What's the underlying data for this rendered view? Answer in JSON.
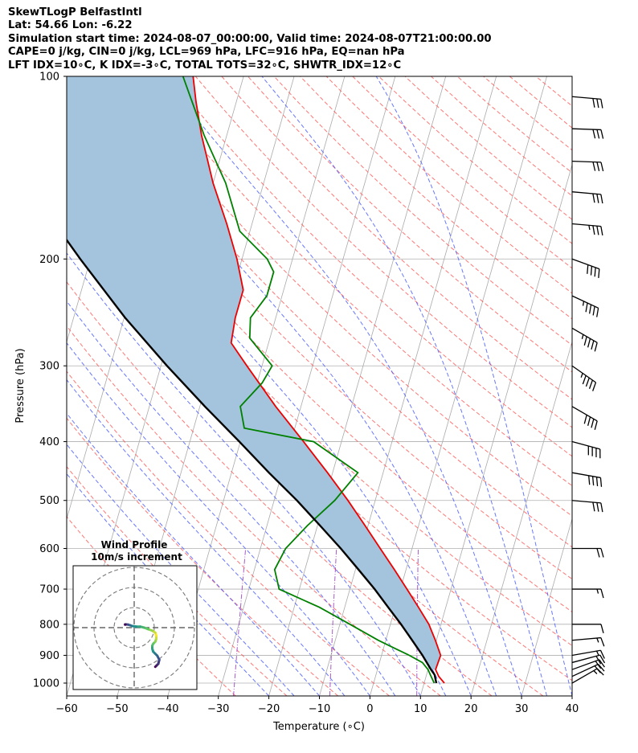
{
  "header": {
    "line1": "SkewTLogP BelfastIntl",
    "line2": "Lat: 54.66   Lon: -6.22",
    "line3": "Simulation start time: 2024-08-07_00:00:00, Valid time: 2024-08-07T21:00:00.00",
    "line4": "CAPE=0 j/kg, CIN=0 j/kg, LCL=969 hPa, LFC=916 hPa, EQ=nan hPa",
    "line5": "LFT IDX=10∘C, K IDX=-3∘C, TOTAL TOTS=32∘C, SHWTR_IDX=12∘C"
  },
  "chart_data": {
    "type": "line",
    "subtype": "skewt-logp",
    "xlabel": "Temperature (∘C)",
    "ylabel": "Pressure (hPa)",
    "xlim": [
      -60,
      40
    ],
    "ylim": [
      1050,
      100
    ],
    "y_scale": "log",
    "skew": 35,
    "x_ticks": [
      -60,
      -50,
      -40,
      -30,
      -20,
      -10,
      0,
      10,
      20,
      30,
      40
    ],
    "x_tick_labels": [
      "−60",
      "−50",
      "−40",
      "−30",
      "−20",
      "−10",
      "0",
      "10",
      "20",
      "30",
      "40"
    ],
    "y_ticks": [
      1000,
      900,
      800,
      700,
      600,
      500,
      400,
      300,
      200,
      100
    ],
    "y_tick_labels": [
      "1000",
      "900",
      "800",
      "700",
      "600",
      "500",
      "400",
      "300",
      "200",
      "100"
    ],
    "grid": true,
    "colors": {
      "temperature": "#ee0000",
      "dewpoint": "#008000",
      "parcel": "#000000",
      "cape_fill": "#a3c4dc",
      "dry_adiabat": "#ff5555",
      "moist_adiabat": "#4455ff",
      "mixing_ratio": "#9a3fbf",
      "isotherm": "#aaaaaa"
    },
    "series": [
      {
        "p": [
          1000,
          975,
          950,
          925,
          900,
          850,
          800,
          750,
          700,
          650,
          600,
          550,
          500,
          450,
          400,
          350,
          300,
          275,
          250,
          225,
          200,
          175,
          150,
          125,
          110,
          100
        ],
        "t": [
          14.0,
          12.5,
          11.5,
          11.6,
          11.7,
          9.8,
          7.6,
          4.6,
          1.3,
          -2.3,
          -6.3,
          -10.6,
          -15.4,
          -21.0,
          -27.5,
          -35.0,
          -43.0,
          -47.4,
          -48.0,
          -48.0,
          -51.0,
          -55.0,
          -60.0,
          -65.0,
          -68.0,
          -70.0
        ]
      },
      {
        "p": [
          1000,
          975,
          950,
          925,
          900,
          875,
          850,
          800,
          750,
          700,
          650,
          600,
          550,
          500,
          450,
          400,
          380,
          350,
          320,
          300,
          270,
          250,
          230,
          210,
          200,
          180,
          150,
          125,
          100
        ],
        "t": [
          12.0,
          11.0,
          10.0,
          8.5,
          5.5,
          2.0,
          -1.5,
          -8.0,
          -15.0,
          -24.0,
          -26.0,
          -25.0,
          -22.0,
          -18.0,
          -15.0,
          -25.5,
          -40.0,
          -42.0,
          -39.0,
          -38.0,
          -44.0,
          -45.0,
          -43.0,
          -43.0,
          -45.0,
          -52.0,
          -57.5,
          -64.5,
          -72.0
        ]
      },
      {
        "p": [
          1000,
          969,
          950,
          900,
          850,
          800,
          750,
          700,
          650,
          600,
          550,
          500,
          450,
          400,
          350,
          300,
          250,
          200,
          150,
          100
        ],
        "t": [
          12.4,
          11.6,
          10.6,
          8.1,
          5.2,
          2.1,
          -1.4,
          -5.1,
          -9.4,
          -14.1,
          -19.5,
          -25.5,
          -32.6,
          -40.2,
          -49.0,
          -58.8,
          -69.8,
          -82.0,
          -97.0,
          -117.5
        ]
      }
    ],
    "wind_barbs": [
      {
        "p": 1000,
        "speed_kt": 15,
        "dir_deg": 240
      },
      {
        "p": 975,
        "speed_kt": 20,
        "dir_deg": 245
      },
      {
        "p": 950,
        "speed_kt": 20,
        "dir_deg": 250
      },
      {
        "p": 925,
        "speed_kt": 20,
        "dir_deg": 255
      },
      {
        "p": 900,
        "speed_kt": 15,
        "dir_deg": 260
      },
      {
        "p": 850,
        "speed_kt": 15,
        "dir_deg": 265
      },
      {
        "p": 800,
        "speed_kt": 10,
        "dir_deg": 270
      },
      {
        "p": 700,
        "speed_kt": 15,
        "dir_deg": 270
      },
      {
        "p": 600,
        "speed_kt": 20,
        "dir_deg": 270
      },
      {
        "p": 500,
        "speed_kt": 30,
        "dir_deg": 275
      },
      {
        "p": 450,
        "speed_kt": 40,
        "dir_deg": 280
      },
      {
        "p": 400,
        "speed_kt": 40,
        "dir_deg": 285
      },
      {
        "p": 350,
        "speed_kt": 40,
        "dir_deg": 300
      },
      {
        "p": 300,
        "speed_kt": 45,
        "dir_deg": 305
      },
      {
        "p": 260,
        "speed_kt": 45,
        "dir_deg": 300
      },
      {
        "p": 230,
        "speed_kt": 45,
        "dir_deg": 295
      },
      {
        "p": 200,
        "speed_kt": 40,
        "dir_deg": 290
      },
      {
        "p": 175,
        "speed_kt": 35,
        "dir_deg": 275
      },
      {
        "p": 155,
        "speed_kt": 30,
        "dir_deg": 275
      },
      {
        "p": 138,
        "speed_kt": 30,
        "dir_deg": 272
      },
      {
        "p": 122,
        "speed_kt": 30,
        "dir_deg": 272
      },
      {
        "p": 108,
        "speed_kt": 30,
        "dir_deg": 275
      }
    ],
    "hodograph": {
      "title": "Wind Profile",
      "subtitle": "10m/s increment",
      "rings_ms": [
        10,
        20,
        30
      ],
      "u": [
        10.5,
        11,
        12,
        12.5,
        11.5,
        10.5,
        9.5,
        9,
        9,
        9.5,
        10.5,
        11,
        11,
        10.5,
        9,
        7,
        5,
        3,
        1,
        -1,
        -2,
        -3,
        -4,
        -4.5,
        -4.5,
        -4.5
      ],
      "v": [
        -19.5,
        -19,
        -18,
        -16,
        -14,
        -13,
        -12,
        -10.5,
        -9,
        -8,
        -7,
        -5.5,
        -4,
        -2.5,
        -1.5,
        -0.8,
        0,
        0.5,
        0.5,
        0.8,
        1.2,
        1.5,
        1.6,
        1.6,
        1.5,
        1.5
      ]
    }
  }
}
